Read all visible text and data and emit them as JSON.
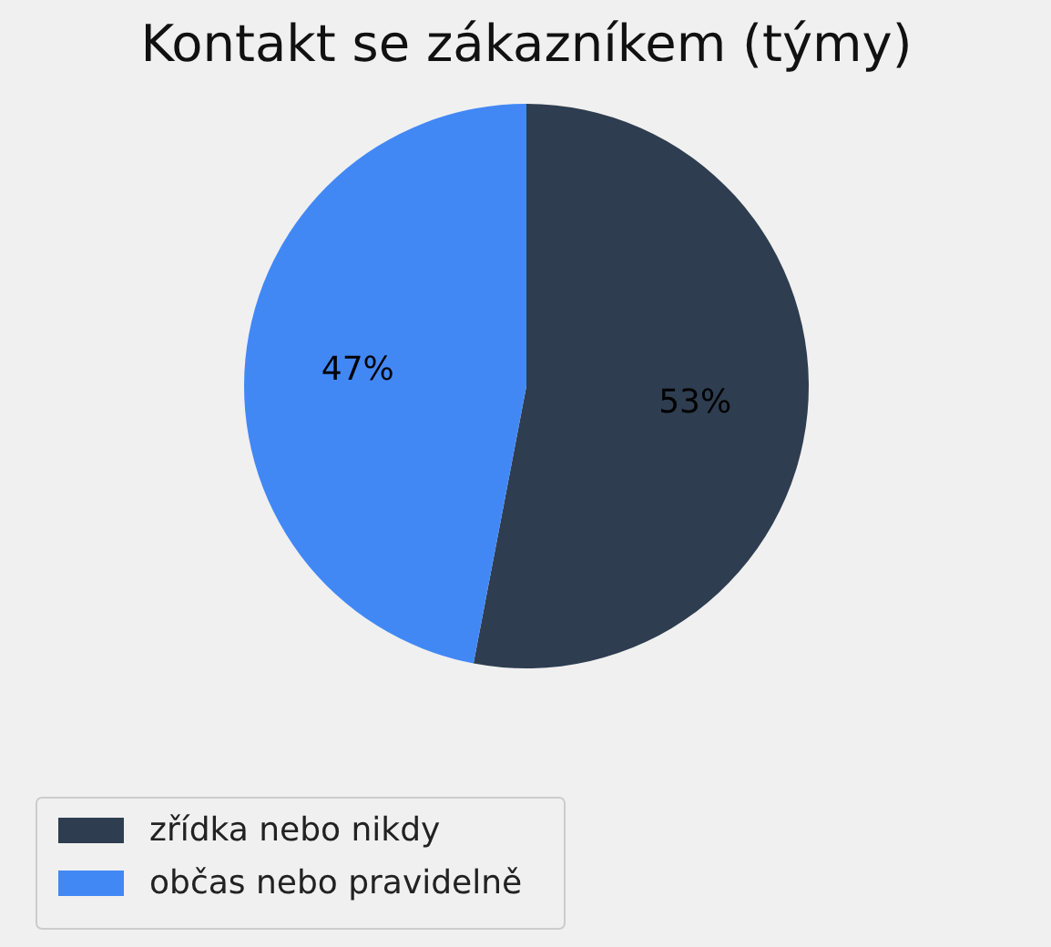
{
  "chart_data": {
    "type": "pie",
    "title": "Kontakt se zákazníkem (týmy)",
    "categories": [
      "zřídka nebo nikdy",
      "občas nebo pravidelně"
    ],
    "values": [
      53,
      47
    ],
    "colors": [
      "#2e3d50",
      "#4288f5"
    ],
    "value_labels": [
      "53%",
      "47%"
    ],
    "legend": "bottom left"
  }
}
